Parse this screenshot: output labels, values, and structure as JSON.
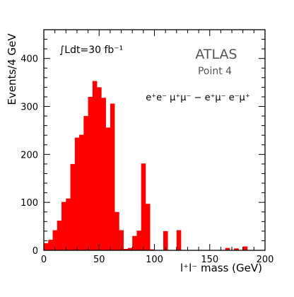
{
  "chart_data": {
    "type": "bar",
    "ylabel": "Events/4 GeV",
    "xlabel": "l⁺l⁻ mass  (GeV)",
    "xlim": [
      0,
      200
    ],
    "ylim": [
      0,
      460
    ],
    "bin_width": 4,
    "x_ticks": [
      0,
      50,
      100,
      150,
      200
    ],
    "y_ticks": [
      0,
      100,
      200,
      300,
      400
    ],
    "x_tick_labels": [
      "0",
      "50",
      "100",
      "150",
      "200"
    ],
    "y_tick_labels": [
      "0",
      "100",
      "200",
      "300",
      "400"
    ],
    "bar_color": "#ff0000",
    "bins": [
      {
        "x": 0,
        "y": 15
      },
      {
        "x": 4,
        "y": 22
      },
      {
        "x": 8,
        "y": 42
      },
      {
        "x": 12,
        "y": 62
      },
      {
        "x": 16,
        "y": 101
      },
      {
        "x": 20,
        "y": 108
      },
      {
        "x": 24,
        "y": 180
      },
      {
        "x": 28,
        "y": 235
      },
      {
        "x": 32,
        "y": 241
      },
      {
        "x": 36,
        "y": 280
      },
      {
        "x": 40,
        "y": 320
      },
      {
        "x": 44,
        "y": 353
      },
      {
        "x": 48,
        "y": 340
      },
      {
        "x": 52,
        "y": 318
      },
      {
        "x": 56,
        "y": 256
      },
      {
        "x": 60,
        "y": 306
      },
      {
        "x": 64,
        "y": 80
      },
      {
        "x": 68,
        "y": 42
      },
      {
        "x": 72,
        "y": 3
      },
      {
        "x": 76,
        "y": 5
      },
      {
        "x": 80,
        "y": 30
      },
      {
        "x": 84,
        "y": 41
      },
      {
        "x": 88,
        "y": 181
      },
      {
        "x": 92,
        "y": 97
      },
      {
        "x": 96,
        "y": 2
      },
      {
        "x": 108,
        "y": 40
      },
      {
        "x": 120,
        "y": 42
      },
      {
        "x": 164,
        "y": 5
      },
      {
        "x": 172,
        "y": 4
      },
      {
        "x": 180,
        "y": 8
      }
    ],
    "annotations": {
      "luminosity": "∫Ldt=30 fb⁻¹",
      "experiment": "ATLAS",
      "point": "Point 4",
      "channels": "e⁺e⁻  μ⁺μ⁻ − e⁺μ⁻  e⁻μ⁺"
    }
  }
}
